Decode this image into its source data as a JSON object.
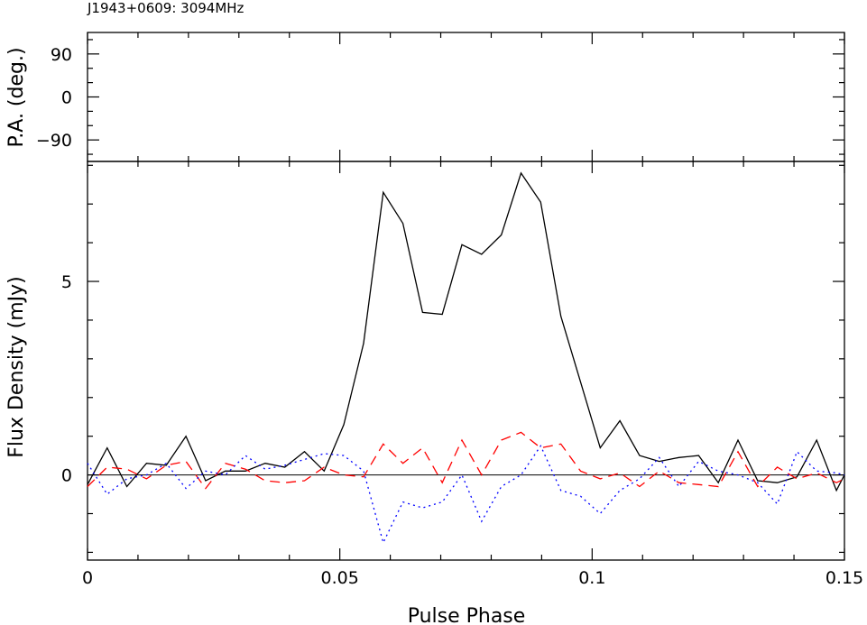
{
  "title": "J1943+0609: 3094MHz",
  "chart_data": [
    {
      "type": "line",
      "panel": "position-angle",
      "ylabel": "P.A. (deg.)",
      "ylim": [
        -135,
        135
      ],
      "xlim": [
        0,
        0.15
      ],
      "yticks": [
        {
          "value": 90,
          "label": "90"
        },
        {
          "value": 0,
          "label": "0"
        },
        {
          "value": -90,
          "label": "−90"
        }
      ],
      "series": []
    },
    {
      "type": "line",
      "panel": "flux-density",
      "xlabel": "Pulse Phase",
      "ylabel": "Flux Density (mJy)",
      "xlim": [
        0,
        0.15
      ],
      "ylim": [
        -2.2,
        8.1
      ],
      "xticks": [
        {
          "value": 0,
          "label": "0"
        },
        {
          "value": 0.05,
          "label": "0.05"
        },
        {
          "value": 0.1,
          "label": "0.1"
        },
        {
          "value": 0.15,
          "label": "0.15"
        }
      ],
      "yticks": [
        {
          "value": 0,
          "label": "0"
        },
        {
          "value": 5,
          "label": "5"
        }
      ],
      "zero_line": true,
      "x": [
        0,
        0.0039,
        0.0078,
        0.0117,
        0.0156,
        0.0195,
        0.0234,
        0.0273,
        0.0313,
        0.0352,
        0.0391,
        0.043,
        0.0469,
        0.0508,
        0.0547,
        0.0586,
        0.0625,
        0.0664,
        0.0703,
        0.0742,
        0.0781,
        0.082,
        0.0859,
        0.0898,
        0.0938,
        0.0977,
        0.1016,
        0.1055,
        0.1094,
        0.1133,
        0.1172,
        0.1211,
        0.125,
        0.1289,
        0.1328,
        0.1367,
        0.1406,
        0.1445,
        0.1484,
        0.15
      ],
      "series": [
        {
          "color": "#000000",
          "dash": "solid",
          "values": [
            -0.25,
            0.7,
            -0.3,
            0.3,
            0.25,
            1.0,
            -0.15,
            0.1,
            0.1,
            0.3,
            0.2,
            0.6,
            0.1,
            1.3,
            3.4,
            7.3,
            6.5,
            4.2,
            4.15,
            5.95,
            5.7,
            6.2,
            7.8,
            7.05,
            4.1,
            2.4,
            0.7,
            1.4,
            0.5,
            0.35,
            0.45,
            0.5,
            -0.2,
            0.9,
            -0.15,
            -0.2,
            -0.05,
            0.9,
            -0.4,
            0.0
          ]
        },
        {
          "color": "#ff0000",
          "dash": "dashed",
          "values": [
            -0.3,
            0.2,
            0.15,
            -0.1,
            0.25,
            0.35,
            -0.35,
            0.3,
            0.15,
            -0.15,
            -0.2,
            -0.15,
            0.2,
            0.0,
            -0.05,
            0.8,
            0.3,
            0.7,
            -0.2,
            0.9,
            0.0,
            0.9,
            1.1,
            0.7,
            0.8,
            0.1,
            -0.1,
            0.05,
            -0.3,
            0.1,
            -0.2,
            -0.25,
            -0.3,
            0.6,
            -0.3,
            0.2,
            -0.1,
            0.05,
            -0.2,
            -0.1
          ]
        },
        {
          "color": "#0000ff",
          "dash": "dotted",
          "values": [
            0.3,
            -0.5,
            -0.1,
            0.0,
            0.3,
            -0.35,
            0.1,
            0.0,
            0.5,
            0.15,
            0.25,
            0.4,
            0.55,
            0.5,
            0.1,
            -1.75,
            -0.7,
            -0.85,
            -0.7,
            0.0,
            -1.2,
            -0.3,
            0.0,
            0.75,
            -0.4,
            -0.55,
            -1.0,
            -0.4,
            -0.1,
            0.45,
            -0.3,
            0.35,
            0.1,
            0.0,
            -0.2,
            -0.75,
            0.6,
            0.1,
            0.05,
            0.0
          ]
        }
      ]
    }
  ]
}
